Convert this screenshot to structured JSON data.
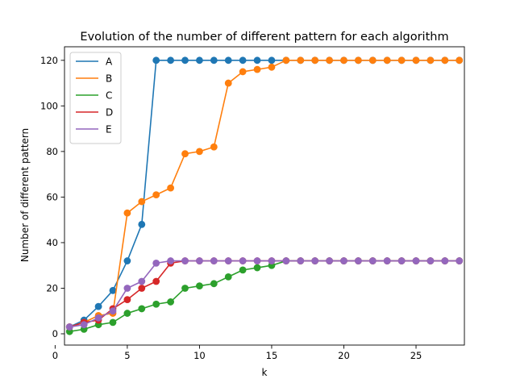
{
  "chart_data": {
    "type": "line",
    "title": "Evolution of the number of different pattern for each algorithm",
    "xlabel": "k",
    "ylabel": "Number of different pattern",
    "xlim": [
      0.65,
      28.35
    ],
    "ylim": [
      -4.95,
      125.95
    ],
    "xticks": [
      0,
      5,
      10,
      15,
      20,
      25
    ],
    "yticks": [
      0,
      20,
      40,
      60,
      80,
      100,
      120
    ],
    "grid": false,
    "legend_position": "top-left",
    "markers": true,
    "x": [
      1,
      2,
      3,
      4,
      5,
      6,
      7,
      8,
      9,
      10,
      11,
      12,
      13,
      14,
      15,
      16,
      17,
      18,
      19,
      20,
      21,
      22,
      23,
      24,
      25,
      26,
      27,
      28
    ],
    "series": [
      {
        "name": "A",
        "color": "#1f77b4",
        "values": [
          3,
          6,
          12,
          19,
          32,
          48,
          120,
          120,
          120,
          120,
          120,
          120,
          120,
          120,
          120,
          120,
          120,
          120,
          120,
          120,
          120,
          120,
          120,
          120,
          120,
          120,
          120,
          120
        ]
      },
      {
        "name": "B",
        "color": "#ff7f0e",
        "values": [
          3,
          5,
          8,
          9,
          53,
          58,
          61,
          64,
          79,
          80,
          82,
          110,
          115,
          116,
          117,
          120,
          120,
          120,
          120,
          120,
          120,
          120,
          120,
          120,
          120,
          120,
          120,
          120
        ]
      },
      {
        "name": "C",
        "color": "#2ca02c",
        "values": [
          1,
          2,
          4,
          5,
          9,
          11,
          13,
          14,
          20,
          21,
          22,
          25,
          28,
          29,
          30,
          32,
          32,
          32,
          32,
          32,
          32,
          32,
          32,
          32,
          32,
          32,
          32,
          32
        ]
      },
      {
        "name": "D",
        "color": "#d62728",
        "values": [
          3,
          5,
          6,
          11,
          15,
          20,
          23,
          31,
          32,
          32,
          32,
          32,
          32,
          32,
          32,
          32,
          32,
          32,
          32,
          32,
          32,
          32,
          32,
          32,
          32,
          32,
          32,
          32
        ]
      },
      {
        "name": "E",
        "color": "#9467bd",
        "values": [
          3,
          4,
          7,
          10,
          20,
          23,
          31,
          32,
          32,
          32,
          32,
          32,
          32,
          32,
          32,
          32,
          32,
          32,
          32,
          32,
          32,
          32,
          32,
          32,
          32,
          32,
          32,
          32
        ]
      }
    ]
  }
}
